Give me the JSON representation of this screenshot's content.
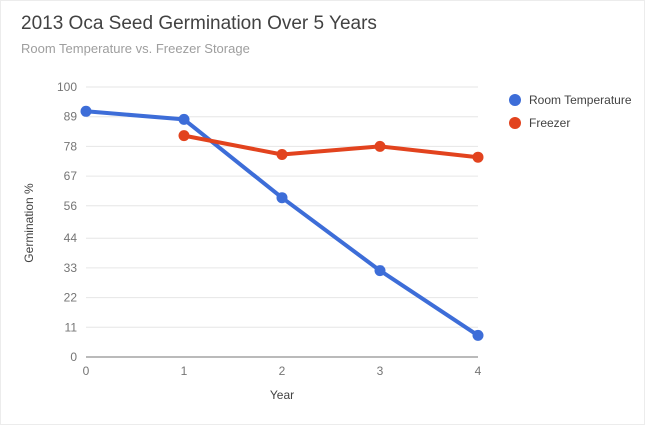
{
  "title": "2013 Oca Seed Germination Over 5 Years",
  "subtitle": "Room Temperature vs. Freezer Storage",
  "chart_data": {
    "type": "line",
    "title": "2013 Oca Seed Germination Over 5 Years",
    "subtitle": "Room Temperature vs. Freezer Storage",
    "xlabel": "Year",
    "ylabel": "Germination %",
    "xlim": [
      0,
      4
    ],
    "ylim": [
      0,
      100
    ],
    "x_ticks": [
      0,
      1,
      2,
      3,
      4
    ],
    "y_ticks": [
      0,
      11,
      22,
      33,
      44,
      56,
      67,
      78,
      89,
      100
    ],
    "grid": "horizontal",
    "legend_position": "right",
    "series": [
      {
        "name": "Room Temperature",
        "color": "#3d6dd8",
        "points": [
          [
            0,
            91
          ],
          [
            1,
            88
          ],
          [
            2,
            59
          ],
          [
            3,
            32
          ],
          [
            4,
            8
          ]
        ]
      },
      {
        "name": "Freezer",
        "color": "#e2431e",
        "points": [
          [
            1,
            82
          ],
          [
            2,
            75
          ],
          [
            3,
            78
          ],
          [
            4,
            74
          ]
        ]
      }
    ],
    "style": {
      "gridline_color": "#e6e6e6",
      "baseline_color": "#757575",
      "tick_label_color": "#757575",
      "line_width": 4,
      "point_radius": 5.5
    }
  }
}
